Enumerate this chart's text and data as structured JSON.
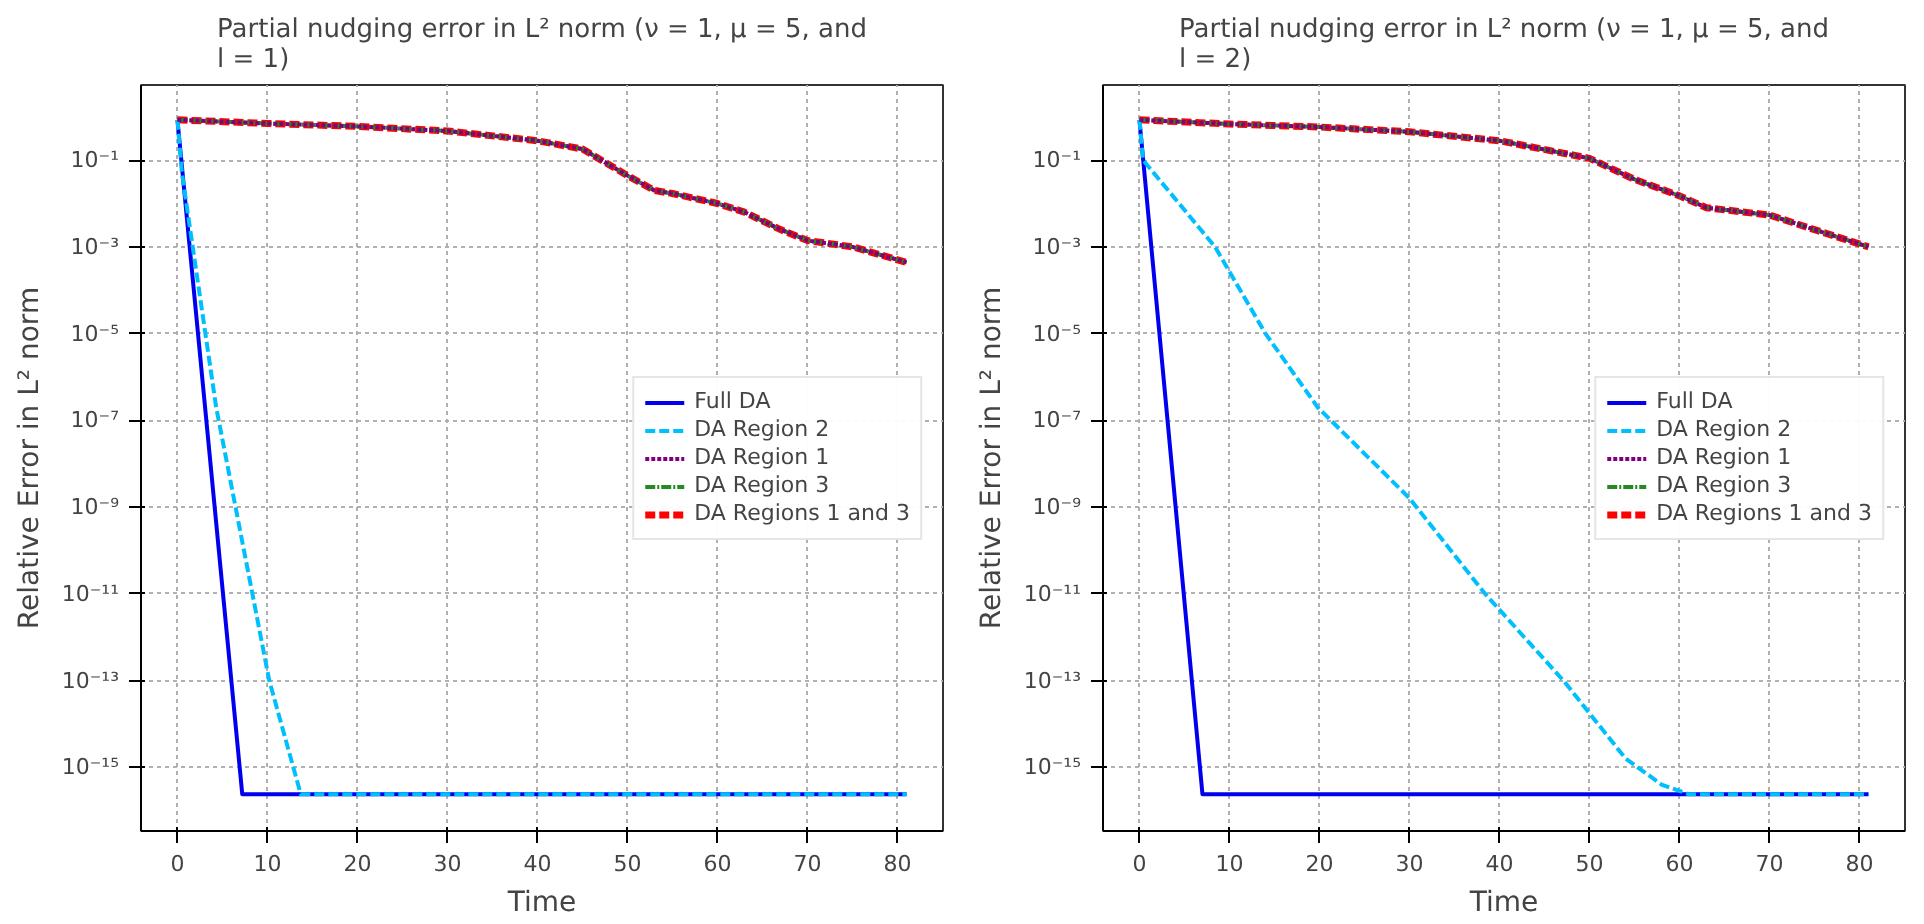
{
  "chart_data": [
    {
      "type": "line",
      "title": "Partial nudging error in L² norm (ν = 1, μ = 5, and l = 1)",
      "xlabel": "Time",
      "ylabel": "Relative Error in L² norm",
      "log": "y",
      "grid": true,
      "legend": "right",
      "xlim": [
        -4.05,
        85.05
      ],
      "ylim": [
        3.4e-17,
        5.4
      ],
      "xticks": [
        0,
        10,
        20,
        30,
        40,
        50,
        60,
        70,
        80
      ],
      "yticks": [
        {
          "value": 0.1,
          "label": "10⁻¹"
        },
        {
          "value": 0.001,
          "label": "10⁻³"
        },
        {
          "value": 1e-05,
          "label": "10⁻⁵"
        },
        {
          "value": 1e-07,
          "label": "10⁻⁷"
        },
        {
          "value": 1e-09,
          "label": "10⁻⁹"
        },
        {
          "value": 1e-11,
          "label": "10⁻¹¹"
        },
        {
          "value": 1e-13,
          "label": "10⁻¹³"
        },
        {
          "value": 1e-15,
          "label": "10⁻¹⁵"
        }
      ],
      "series": [
        {
          "name": "Full DA",
          "color": "#0000ee",
          "line_style": "solid",
          "x": [
            0,
            7.2,
            81
          ],
          "values": [
            0.85,
            2.4e-16,
            2.4e-16
          ]
        },
        {
          "name": "DA Region 2",
          "color": "#00bfff",
          "line_style": "dashed",
          "x": [
            0,
            0.5,
            4.3,
            10.2,
            13.7,
            81
          ],
          "values": [
            0.85,
            0.05,
            2e-07,
            1e-13,
            2.4e-16,
            2.4e-16
          ]
        },
        {
          "name": "DA Region 1",
          "color": "#800080",
          "line_style": "dotted",
          "x": [
            0,
            10,
            20,
            30,
            40,
            45,
            50,
            53,
            55,
            60,
            63,
            67,
            70,
            75,
            81
          ],
          "values": [
            0.85,
            0.7,
            0.6,
            0.47,
            0.28,
            0.18,
            0.044,
            0.02,
            0.017,
            0.01,
            0.0063,
            0.0025,
            0.0014,
            0.001,
            0.00044
          ]
        },
        {
          "name": "DA Region 3",
          "color": "#228b22",
          "line_style": "dashdot",
          "x": [
            0,
            10,
            20,
            30,
            40,
            45,
            50,
            53,
            55,
            60,
            63,
            67,
            70,
            75,
            81
          ],
          "values": [
            0.85,
            0.7,
            0.6,
            0.47,
            0.28,
            0.18,
            0.044,
            0.02,
            0.017,
            0.01,
            0.0063,
            0.0025,
            0.0014,
            0.001,
            0.00044
          ]
        },
        {
          "name": "DA Regions 1 and 3",
          "color": "#ff0000",
          "line_style": "dashed",
          "x": [
            0,
            10,
            20,
            30,
            40,
            45,
            50,
            53,
            55,
            60,
            63,
            67,
            70,
            75,
            81
          ],
          "values": [
            0.85,
            0.7,
            0.6,
            0.47,
            0.28,
            0.18,
            0.044,
            0.02,
            0.017,
            0.01,
            0.0063,
            0.0025,
            0.0014,
            0.001,
            0.00044
          ]
        }
      ]
    },
    {
      "type": "line",
      "title": "Partial nudging error in L² norm (ν = 1, μ = 5, and l = 2)",
      "xlabel": "Time",
      "ylabel": "Relative Error in L² norm",
      "log": "y",
      "grid": true,
      "legend": "right",
      "xlim": [
        -4.05,
        85.05
      ],
      "ylim": [
        3.4e-17,
        5.4
      ],
      "xticks": [
        0,
        10,
        20,
        30,
        40,
        50,
        60,
        70,
        80
      ],
      "yticks": [
        {
          "value": 0.1,
          "label": "10⁻¹"
        },
        {
          "value": 0.001,
          "label": "10⁻³"
        },
        {
          "value": 1e-05,
          "label": "10⁻⁵"
        },
        {
          "value": 1e-07,
          "label": "10⁻⁷"
        },
        {
          "value": 1e-09,
          "label": "10⁻⁹"
        },
        {
          "value": 1e-11,
          "label": "10⁻¹¹"
        },
        {
          "value": 1e-13,
          "label": "10⁻¹³"
        },
        {
          "value": 1e-15,
          "label": "10⁻¹⁵"
        }
      ],
      "series": [
        {
          "name": "Full DA",
          "color": "#0000ee",
          "line_style": "solid",
          "x": [
            0,
            7.0,
            81
          ],
          "values": [
            0.85,
            2.4e-16,
            2.4e-16
          ]
        },
        {
          "name": "DA Region 2",
          "color": "#00bfff",
          "line_style": "dashed",
          "x": [
            0,
            0.4,
            8.4,
            14,
            19.8,
            30,
            38.4,
            47.1,
            54,
            58,
            61,
            81
          ],
          "values": [
            0.85,
            0.1,
            0.001,
            1e-05,
            2e-07,
            1.6e-09,
            1e-11,
            1e-13,
            1.6e-15,
            4e-16,
            2.4e-16,
            2.4e-16
          ]
        },
        {
          "name": "DA Region 1",
          "color": "#800080",
          "line_style": "dotted",
          "x": [
            0,
            10,
            20,
            30,
            40,
            50,
            55,
            60,
            63,
            70,
            75,
            81
          ],
          "values": [
            0.85,
            0.68,
            0.58,
            0.45,
            0.28,
            0.11,
            0.036,
            0.015,
            0.008,
            0.0054,
            0.0025,
            0.001
          ]
        },
        {
          "name": "DA Region 3",
          "color": "#228b22",
          "line_style": "dashdot",
          "x": [
            0,
            10,
            20,
            30,
            40,
            50,
            55,
            60,
            63,
            70,
            75,
            81
          ],
          "values": [
            0.85,
            0.68,
            0.58,
            0.45,
            0.28,
            0.11,
            0.036,
            0.015,
            0.008,
            0.0054,
            0.0025,
            0.001
          ]
        },
        {
          "name": "DA Regions 1 and 3",
          "color": "#ff0000",
          "line_style": "dashed",
          "x": [
            0,
            10,
            20,
            30,
            40,
            50,
            55,
            60,
            63,
            70,
            75,
            81
          ],
          "values": [
            0.85,
            0.68,
            0.58,
            0.45,
            0.28,
            0.11,
            0.036,
            0.015,
            0.008,
            0.0054,
            0.0025,
            0.001
          ]
        }
      ]
    }
  ]
}
